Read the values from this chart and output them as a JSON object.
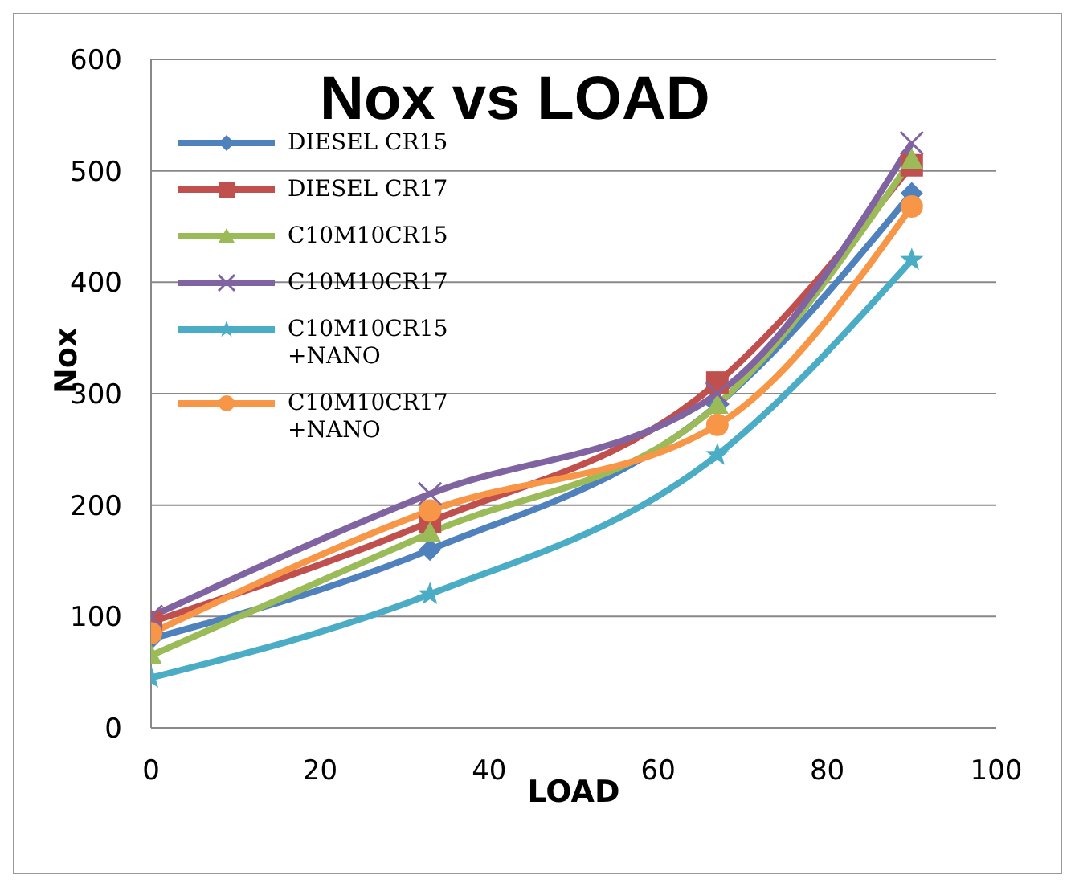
{
  "chart_data": {
    "type": "line",
    "title": "Nox vs LOAD",
    "xlabel": "LOAD",
    "ylabel": "Nox",
    "x": [
      0,
      33,
      67,
      90
    ],
    "series": [
      {
        "name": "DIESEL CR15",
        "color": "#4f81bd",
        "marker": "diamond",
        "values": [
          80,
          160,
          290,
          480
        ]
      },
      {
        "name": "DIESEL CR17",
        "color": "#c0504d",
        "marker": "square",
        "values": [
          95,
          185,
          310,
          505
        ]
      },
      {
        "name": "C10M10CR15",
        "color": "#9bbb59",
        "marker": "triangle",
        "values": [
          65,
          175,
          290,
          510
        ]
      },
      {
        "name": "C10M10CR17",
        "color": "#8064a2",
        "marker": "cross",
        "values": [
          100,
          210,
          300,
          525
        ]
      },
      {
        "name": "C10M10CR15 +NANO",
        "color": "#4bacc6",
        "marker": "star",
        "values": [
          45,
          120,
          245,
          420
        ]
      },
      {
        "name": "C10M10CR17 +NANO",
        "color": "#f79646",
        "marker": "circle",
        "values": [
          85,
          195,
          272,
          468
        ]
      }
    ],
    "xlim": [
      0,
      100
    ],
    "xticks": [
      0,
      20,
      40,
      60,
      80,
      100
    ],
    "ylim": [
      0,
      600
    ],
    "yticks": [
      0,
      100,
      200,
      300,
      400,
      500,
      600
    ],
    "grid": "y",
    "legend": "top left",
    "line_style": "solid"
  }
}
